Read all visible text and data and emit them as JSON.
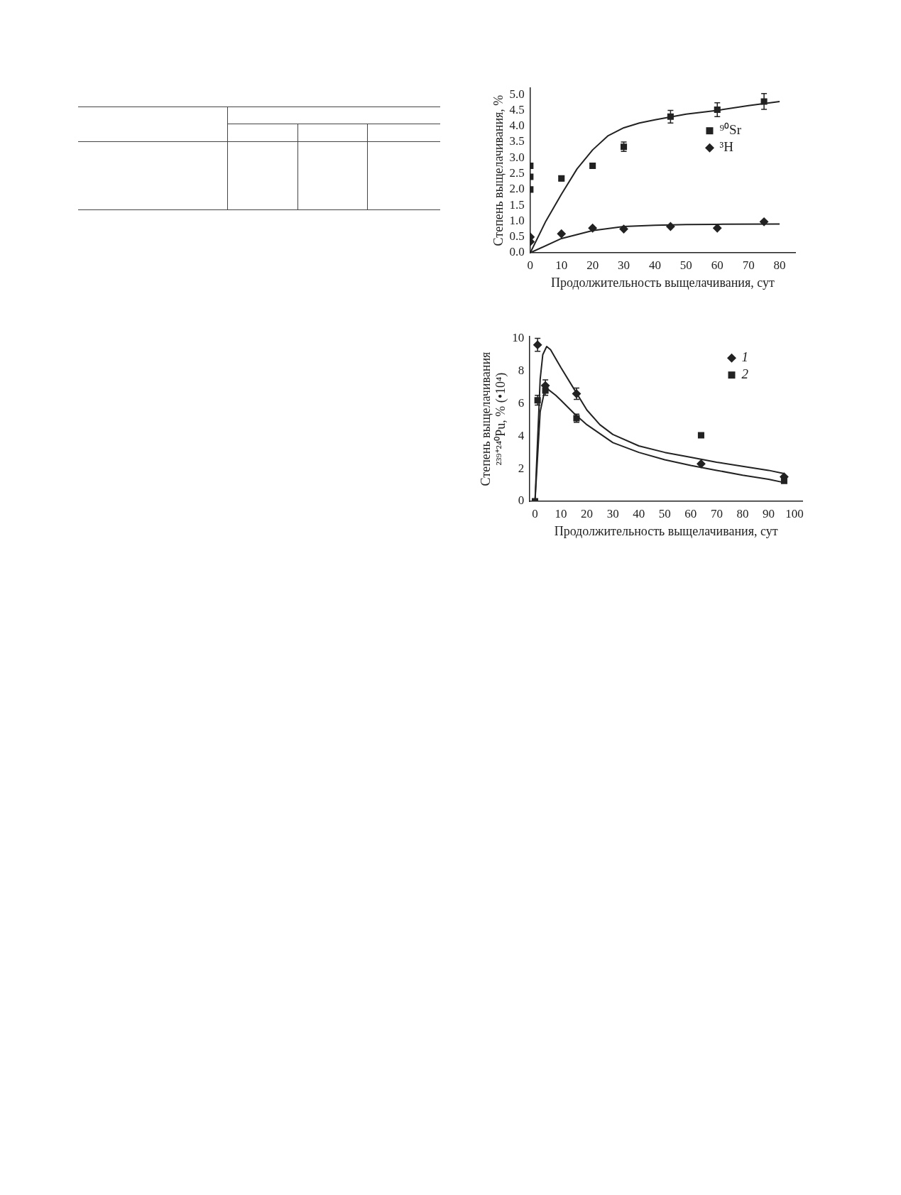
{
  "chart_data": [
    {
      "type": "scatter",
      "xlabel": "Продолжительность выщелачивания, сут",
      "ylabel": "Степень выщелачивания, %",
      "xlim": [
        0,
        85
      ],
      "ylim": [
        0,
        5.2
      ],
      "xticks": [
        0,
        10,
        20,
        30,
        40,
        50,
        60,
        70,
        80
      ],
      "yticks": [
        {
          "value": 0,
          "label": "0.0"
        },
        0.5,
        {
          "value": 1,
          "label": "1.0"
        },
        1.5,
        {
          "value": 2,
          "label": "2.0"
        },
        2.5,
        {
          "value": 3,
          "label": "3.0"
        },
        3.5,
        {
          "value": 4,
          "label": "4.0"
        },
        4.5,
        {
          "value": 5,
          "label": "5.0"
        }
      ],
      "legend": "top right",
      "grid": false,
      "series": [
        {
          "name": "⁹⁰Sr",
          "color": "#222222",
          "marker": "square",
          "x": [
            0,
            0,
            0,
            10,
            20,
            30,
            45,
            60,
            75
          ],
          "values": [
            2.75,
            2.4,
            2.0,
            2.35,
            2.75,
            3.35,
            4.3,
            4.52,
            4.78
          ],
          "errors": [
            null,
            null,
            null,
            0.08,
            0.08,
            0.15,
            0.2,
            0.22,
            0.25
          ]
        },
        {
          "name": "³H",
          "color": "#222222",
          "marker": "diamond",
          "x": [
            0,
            0,
            10,
            20,
            30,
            45,
            60,
            75
          ],
          "values": [
            0.5,
            0.35,
            0.6,
            0.78,
            0.75,
            0.83,
            0.78,
            0.98
          ]
        },
        {
          "type": "line",
          "color": "#222222",
          "marker": "none",
          "x": [
            0,
            5,
            10,
            15,
            20,
            25,
            30,
            35,
            40,
            50,
            60,
            70,
            80
          ],
          "values": [
            0,
            1.0,
            1.85,
            2.65,
            3.25,
            3.7,
            3.95,
            4.1,
            4.2,
            4.38,
            4.5,
            4.65,
            4.78
          ]
        },
        {
          "type": "line",
          "color": "#222222",
          "marker": "none",
          "x": [
            0,
            10,
            20,
            30,
            40,
            50,
            60,
            80
          ],
          "values": [
            0,
            0.45,
            0.7,
            0.83,
            0.87,
            0.89,
            0.9,
            0.91
          ]
        }
      ]
    },
    {
      "type": "scatter",
      "xlabel": "Продолжительность выщелачивания, сут",
      "ylabel": "Степень выщелачивания ²³⁹⁺²⁴⁰Pu, % (•10⁴)",
      "xlim": [
        -2,
        103
      ],
      "ylim": [
        0,
        10.1
      ],
      "xticks": [
        0,
        10,
        20,
        30,
        40,
        50,
        60,
        70,
        80,
        90,
        100
      ],
      "yticks": [
        0,
        2,
        4,
        6,
        8,
        10
      ],
      "legend": "top right",
      "grid": false,
      "series": [
        {
          "name": "1",
          "color": "#222222",
          "marker": "diamond",
          "x": [
            1,
            4,
            16,
            64,
            96
          ],
          "values": [
            9.6,
            7.1,
            6.6,
            2.3,
            1.5
          ],
          "errors": [
            0.4,
            0.35,
            0.35,
            null,
            null
          ]
        },
        {
          "name": "2",
          "color": "#222222",
          "marker": "square",
          "x": [
            0,
            1,
            4,
            16,
            64,
            96
          ],
          "values": [
            0,
            6.2,
            6.8,
            5.1,
            4.05,
            1.25
          ],
          "errors": [
            null,
            0.3,
            0.3,
            0.25,
            null,
            null
          ]
        },
        {
          "type": "line",
          "color": "#222222",
          "marker": "none",
          "x": [
            0,
            2,
            3,
            4.5,
            6,
            10,
            15,
            20,
            25,
            30,
            40,
            50,
            60,
            70,
            80,
            90,
            96
          ],
          "values": [
            0,
            7.5,
            9.0,
            9.5,
            9.3,
            8.2,
            6.9,
            5.6,
            4.7,
            4.1,
            3.4,
            3.0,
            2.7,
            2.4,
            2.15,
            1.9,
            1.7
          ]
        },
        {
          "type": "line",
          "color": "#222222",
          "marker": "none",
          "x": [
            0,
            2,
            4,
            8,
            10,
            15,
            20,
            30,
            40,
            50,
            60,
            70,
            80,
            90,
            96
          ],
          "values": [
            0,
            5.5,
            7.0,
            6.5,
            6.2,
            5.4,
            4.7,
            3.6,
            3.0,
            2.55,
            2.2,
            1.9,
            1.6,
            1.35,
            1.15
          ]
        }
      ]
    }
  ]
}
